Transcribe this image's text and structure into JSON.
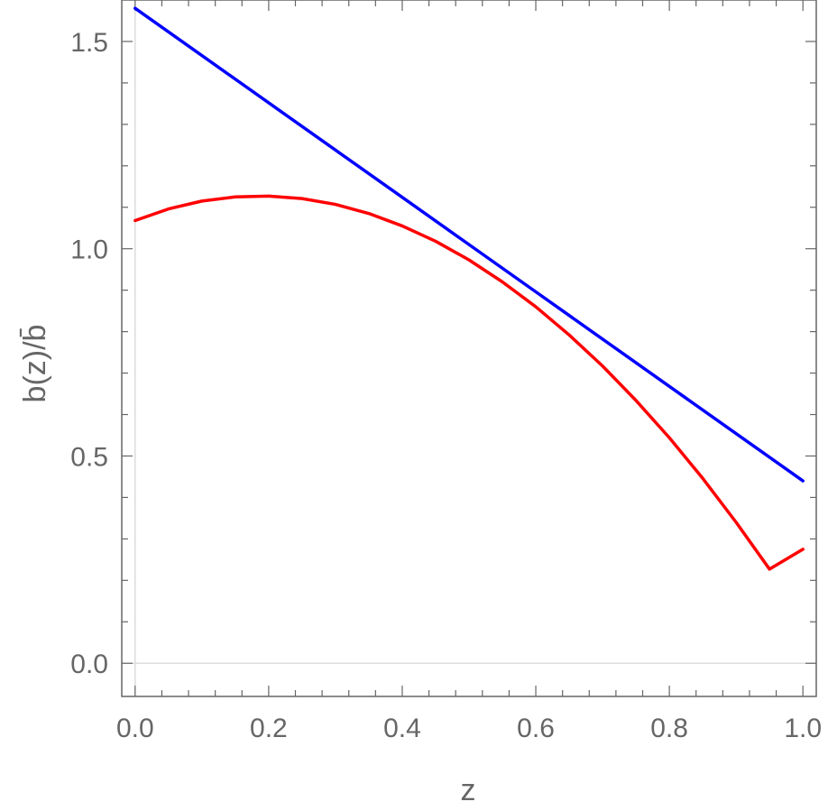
{
  "chart_data": {
    "type": "line",
    "xlabel": "z",
    "ylabel": "b(z)/b̄",
    "xlim": [
      -0.02,
      1.02
    ],
    "ylim": [
      -0.08,
      1.6
    ],
    "x_ticks": [
      0.0,
      0.2,
      0.4,
      0.6,
      0.8,
      1.0
    ],
    "x_tick_labels": [
      "0.0",
      "0.2",
      "0.4",
      "0.6",
      "0.8",
      "1.0"
    ],
    "y_ticks": [
      0.0,
      0.5,
      1.0,
      1.5
    ],
    "y_tick_labels": [
      "0.0",
      "0.5",
      "1.0",
      "1.5"
    ],
    "grid": false,
    "frame": "box",
    "series": [
      {
        "color": "#0000ff",
        "x": [
          0.0,
          0.1,
          0.2,
          0.3,
          0.4,
          0.5,
          0.6,
          0.7,
          0.8,
          0.9,
          1.0
        ],
        "y": [
          1.58,
          1.466,
          1.352,
          1.238,
          1.124,
          1.01,
          0.896,
          0.782,
          0.668,
          0.554,
          0.44
        ]
      },
      {
        "color": "#ff0000",
        "x": [
          0.0,
          0.05,
          0.1,
          0.15,
          0.2,
          0.25,
          0.3,
          0.35,
          0.4,
          0.45,
          0.5,
          0.55,
          0.6,
          0.65,
          0.7,
          0.75,
          0.8,
          0.85,
          0.9,
          0.95,
          1.0
        ],
        "y": [
          1.068,
          1.096,
          1.115,
          1.125,
          1.127,
          1.121,
          1.107,
          1.085,
          1.055,
          1.018,
          0.973,
          0.92,
          0.86,
          0.792,
          0.717,
          0.634,
          0.544,
          0.446,
          0.34,
          0.227,
          0.275
        ]
      }
    ]
  }
}
